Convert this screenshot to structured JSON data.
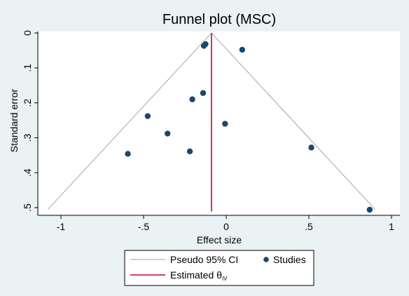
{
  "chart_data": {
    "type": "scatter",
    "title": "Funnel plot (MSC)",
    "xlabel": "Effect size",
    "ylabel": "Standard error",
    "xlim": [
      -1.15,
      1.05
    ],
    "ylim": [
      0,
      0.5
    ],
    "y_reversed": true,
    "x_ticks": [
      -1,
      -0.5,
      0,
      0.5,
      1
    ],
    "x_tick_labels": [
      "-1",
      "-.5",
      "0",
      ".5",
      "1"
    ],
    "y_ticks": [
      0,
      0.1,
      0.2,
      0.3,
      0.4,
      0.5
    ],
    "y_tick_labels": [
      "0",
      ".1",
      ".2",
      ".3",
      ".4",
      ".5"
    ],
    "grid": false,
    "estimated_effect": -0.089,
    "ci_se_max": 0.505,
    "series": [
      {
        "name": "Studies",
        "points": [
          {
            "x": -0.135,
            "y": 0.037
          },
          {
            "x": -0.125,
            "y": 0.032
          },
          {
            "x": 0.097,
            "y": 0.048
          },
          {
            "x": -0.14,
            "y": 0.172
          },
          {
            "x": -0.205,
            "y": 0.19
          },
          {
            "x": -0.475,
            "y": 0.238
          },
          {
            "x": -0.007,
            "y": 0.26
          },
          {
            "x": -0.355,
            "y": 0.288
          },
          {
            "x": 0.515,
            "y": 0.328
          },
          {
            "x": -0.595,
            "y": 0.346
          },
          {
            "x": -0.22,
            "y": 0.339
          },
          {
            "x": 0.868,
            "y": 0.506
          }
        ]
      }
    ],
    "legend": {
      "placement": "bottom",
      "items": [
        {
          "label": "Pseudo 95% CI",
          "kind": "line",
          "color": "#b4b4b4"
        },
        {
          "label": "Studies",
          "kind": "marker",
          "color": "#1a476f"
        },
        {
          "label": "Estimated θ",
          "subscript": "IV",
          "kind": "line",
          "color": "#c10534"
        }
      ]
    }
  },
  "colors": {
    "background": "#eaf2f3",
    "plot_area": "#ffffff",
    "marker": "#1a476f",
    "ci_line": "#b4b4b4",
    "estimate_line": "#c10534"
  }
}
